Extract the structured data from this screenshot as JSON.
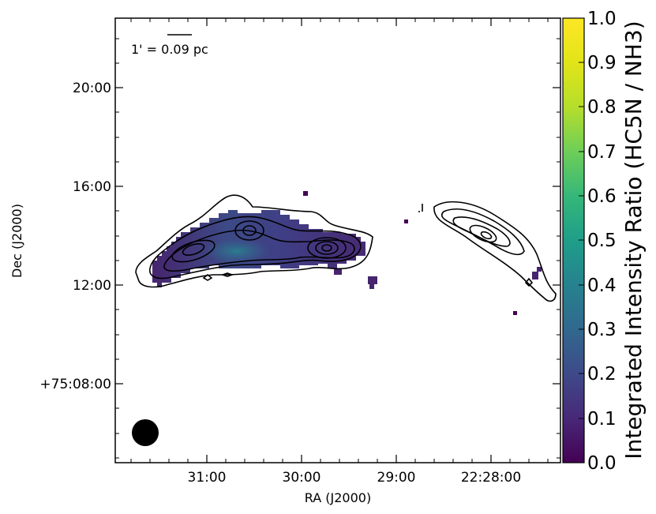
{
  "chart_data": {
    "type": "heatmap",
    "xlabel": "RA (J2000)",
    "ylabel": "Dec (J2000)",
    "x_ticks": [
      "31:00",
      "30:00",
      "29:00",
      "22:28:00"
    ],
    "y_ticks": [
      "+75:08:00",
      "12:00",
      "16:00",
      "20:00"
    ],
    "colorbar": {
      "label": "Integrated Intensity Ratio (HC5N / NH3)",
      "colormap": "viridis",
      "range": [
        0.0,
        1.0
      ],
      "ticks": [
        "0.0",
        "0.1",
        "0.2",
        "0.3",
        "0.4",
        "0.5",
        "0.6",
        "0.7",
        "0.8",
        "0.9",
        "1.0"
      ]
    },
    "scale_bar": {
      "label": "1' = 0.09 pc"
    },
    "beam": {
      "shape": "circle",
      "color": "#000000"
    },
    "overlay": "NH3 integrated intensity contours (black)",
    "colors": {
      "low": "#440154",
      "mid": "#21918c",
      "high": "#fde725"
    }
  }
}
